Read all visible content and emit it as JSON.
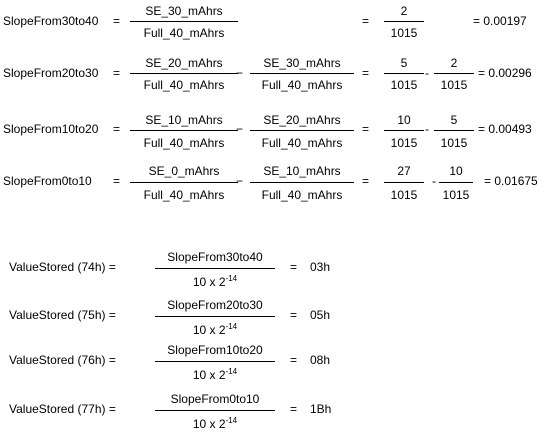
{
  "slopes": [
    {
      "label": "SlopeFrom30to40",
      "eq1": "=",
      "terms": [
        {
          "num": "SE_30_mAhrs",
          "den": "Full_40_mAhrs"
        }
      ],
      "eq2": "=",
      "nums": [
        {
          "num": "2",
          "den": "1015"
        }
      ],
      "result": "= 0.00197"
    },
    {
      "label": "SlopeFrom20to30",
      "eq1": "=",
      "terms": [
        {
          "num": "SE_20_mAhrs",
          "den": "Full_40_mAhrs"
        },
        {
          "num": "SE_30_mAhrs",
          "den": "Full_40_mAhrs"
        }
      ],
      "op": "−",
      "eq2": "=",
      "nums": [
        {
          "num": "5",
          "den": "1015"
        },
        {
          "num": "2",
          "den": "1015"
        }
      ],
      "numop": "-",
      "result": "= 0.00296"
    },
    {
      "label": "SlopeFrom10to20",
      "eq1": "=",
      "terms": [
        {
          "num": "SE_10_mAhrs",
          "den": "Full_40_mAhrs"
        },
        {
          "num": "SE_20_mAhrs",
          "den": "Full_40_mAhrs"
        }
      ],
      "op": "−",
      "eq2": "=",
      "nums": [
        {
          "num": "10",
          "den": "1015"
        },
        {
          "num": "5",
          "den": "1015"
        }
      ],
      "numop": "-",
      "result": "= 0.00493"
    },
    {
      "label": "SlopeFrom0to10",
      "eq1": "=",
      "terms": [
        {
          "num": "SE_0_mAhrs",
          "den": "Full_40_mAhrs"
        },
        {
          "num": "SE_10_mAhrs",
          "den": "Full_40_mAhrs"
        }
      ],
      "op": "−",
      "eq2": "=",
      "nums": [
        {
          "num": "27",
          "den": "1015"
        },
        {
          "num": "10",
          "den": "1015"
        }
      ],
      "numop": "-",
      "result": "= 0.01675"
    }
  ],
  "stored": [
    {
      "label": "ValueStored  (74h)  =",
      "num": "SlopeFrom30to40",
      "den_base": "10 x 2",
      "den_exp": "-14",
      "eq": "=",
      "value": "03h"
    },
    {
      "label": "ValueStored  (75h)  =",
      "num": "SlopeFrom20to30",
      "den_base": "10 x 2",
      "den_exp": "-14",
      "eq": "=",
      "value": "05h"
    },
    {
      "label": "ValueStored  (76h)  =",
      "num": "SlopeFrom10to20",
      "den_base": "10 x 2",
      "den_exp": "-14",
      "eq": "=",
      "value": "08h"
    },
    {
      "label": "ValueStored  (77h)  =",
      "num": "SlopeFrom0to10",
      "den_base": "10 x 2",
      "den_exp": "-14",
      "eq": "=",
      "value": "1Bh"
    }
  ]
}
